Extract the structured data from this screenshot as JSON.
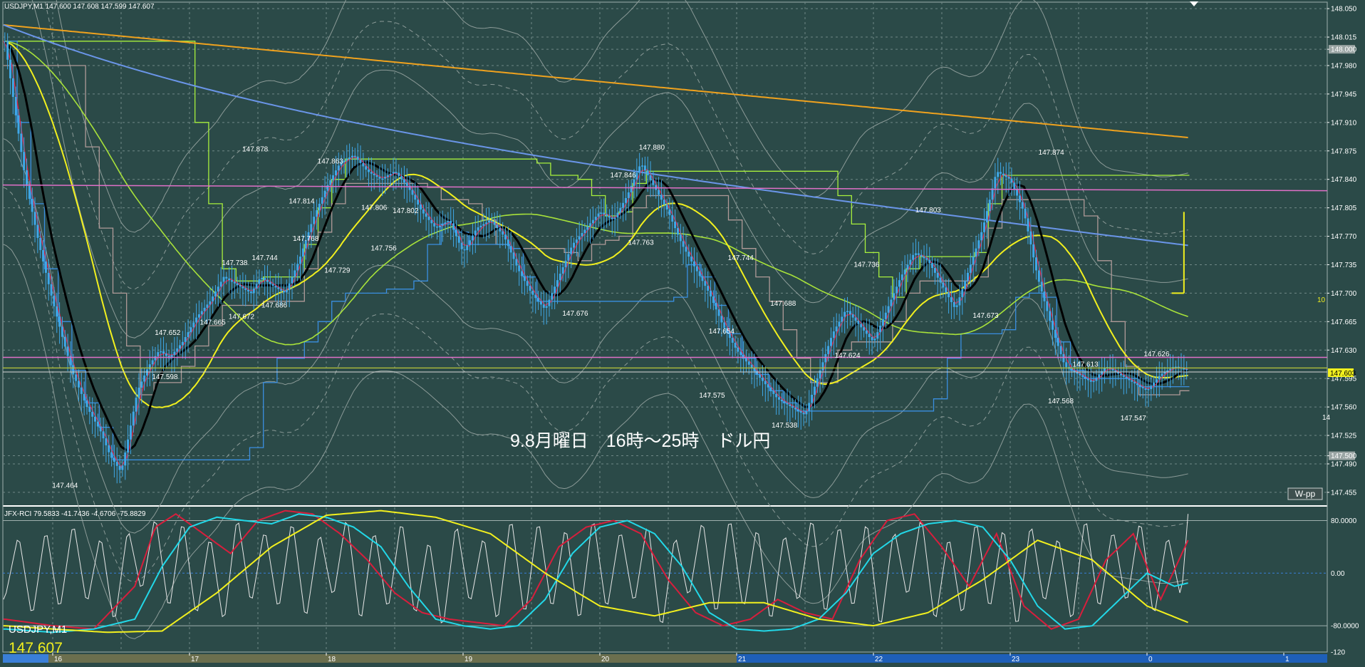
{
  "main_header": "USDJPY,M1  147.600 147.608 147.599 147.607",
  "overlay_title": "9.8月曜日　16時～25時　ドル円",
  "wpp_button": "W-pp",
  "rci_header": "JFX-RCI 79.5833 -41.7436 -4.6706 -75.8829",
  "symbol_label": "USDJPY,M1",
  "price_label": "147.607",
  "current_price_tag": "147.603",
  "tick_label_10": "10",
  "right_edge_label": "14",
  "colors": {
    "background": "#2b4a48",
    "grid": "#6f8886",
    "candle": "#3fa8e8",
    "ma_black": "#000000",
    "ma_red": "#d81e3c",
    "ma_yellow": "#f2f01e",
    "ma_lime": "#a8e23a",
    "ma_orange": "#f0a21e",
    "ma_blue": "#6a95e8",
    "step_green": "#a8f03c",
    "step_gray": "#b09a98",
    "step_blue": "#3a8ee0",
    "bollinger": "#8c9b98",
    "pink_line": "#e070c8",
    "olive_line": "#b8c63a",
    "rci_white": "#e8e8e8",
    "rci_red": "#d81e3c",
    "rci_cyan": "#22d8e8",
    "rci_yellow": "#f2f01e"
  },
  "chart_data": {
    "type": "line",
    "instrument": "USDJPY",
    "timeframe": "M1",
    "main_y_ticks": [
      148.05,
      148.015,
      148.0,
      147.98,
      147.945,
      147.91,
      147.875,
      147.84,
      147.805,
      147.77,
      147.735,
      147.7,
      147.665,
      147.63,
      147.595,
      147.56,
      147.525,
      147.5,
      147.49,
      147.455
    ],
    "boxed_ticks": [
      148.0,
      147.5
    ],
    "ylim": [
      147.44,
      148.058
    ],
    "x_tick_labels": [
      "16",
      "17",
      "18",
      "19",
      "20",
      "21",
      "22",
      "23",
      "0",
      "1"
    ],
    "price_labels": [
      {
        "label": "147.878",
        "x": 1.48,
        "y": 147.878
      },
      {
        "label": "147.863",
        "x": 2.03,
        "y": 147.863
      },
      {
        "label": "147.814",
        "x": 1.82,
        "y": 147.814
      },
      {
        "label": "147.806",
        "x": 2.35,
        "y": 147.806
      },
      {
        "label": "147.802",
        "x": 2.58,
        "y": 147.802
      },
      {
        "label": "147.846",
        "x": 4.17,
        "y": 147.846
      },
      {
        "label": "147.880",
        "x": 4.38,
        "y": 147.88
      },
      {
        "label": "147.874",
        "x": 7.3,
        "y": 147.874
      },
      {
        "label": "147.803",
        "x": 6.4,
        "y": 147.803
      },
      {
        "label": "147.738",
        "x": 1.33,
        "y": 147.738
      },
      {
        "label": "147.744",
        "x": 1.55,
        "y": 147.744
      },
      {
        "label": "147.768",
        "x": 1.85,
        "y": 147.768
      },
      {
        "label": "147.756",
        "x": 2.42,
        "y": 147.756
      },
      {
        "label": "147.729",
        "x": 2.08,
        "y": 147.729
      },
      {
        "label": "147.763",
        "x": 4.3,
        "y": 147.763
      },
      {
        "label": "147.744",
        "x": 5.03,
        "y": 147.744
      },
      {
        "label": "147.736",
        "x": 5.95,
        "y": 147.736
      },
      {
        "label": "147.665",
        "x": 1.17,
        "y": 147.665
      },
      {
        "label": "147.672",
        "x": 1.38,
        "y": 147.672
      },
      {
        "label": "147.686",
        "x": 1.62,
        "y": 147.686
      },
      {
        "label": "147.676",
        "x": 3.82,
        "y": 147.676
      },
      {
        "label": "147.688",
        "x": 5.34,
        "y": 147.688
      },
      {
        "label": "147.673",
        "x": 6.82,
        "y": 147.673
      },
      {
        "label": "147.652",
        "x": 0.84,
        "y": 147.652
      },
      {
        "label": "147.654",
        "x": 4.89,
        "y": 147.654
      },
      {
        "label": "147.613",
        "x": 7.55,
        "y": 147.613
      },
      {
        "label": "147.626",
        "x": 8.07,
        "y": 147.626
      },
      {
        "label": "147.624",
        "x": 5.81,
        "y": 147.624
      },
      {
        "label": "147.598",
        "x": 0.82,
        "y": 147.598
      },
      {
        "label": "147.575",
        "x": 4.82,
        "y": 147.575
      },
      {
        "label": "147.568",
        "x": 7.37,
        "y": 147.568
      },
      {
        "label": "147.538",
        "x": 5.35,
        "y": 147.538
      },
      {
        "label": "147.547",
        "x": 7.9,
        "y": 147.547
      },
      {
        "label": "147.464",
        "x": 0.09,
        "y": 147.464
      }
    ],
    "close_series": {
      "x": [
        -0.35,
        -0.28,
        -0.2,
        -0.1,
        0,
        0.08,
        0.15,
        0.25,
        0.35,
        0.42,
        0.5,
        0.55,
        0.62,
        0.7,
        0.78,
        0.85,
        0.95,
        1.05,
        1.15,
        1.25,
        1.35,
        1.45,
        1.52,
        1.6,
        1.7,
        1.8,
        1.9,
        2.0,
        2.1,
        2.2,
        2.3,
        2.4,
        2.5,
        2.6,
        2.7,
        2.8,
        2.9,
        3.0,
        3.1,
        3.2,
        3.3,
        3.4,
        3.5,
        3.6,
        3.7,
        3.8,
        3.9,
        4.0,
        4.1,
        4.2,
        4.3,
        4.4,
        4.5,
        4.6,
        4.7,
        4.8,
        4.9,
        5.0,
        5.1,
        5.2,
        5.3,
        5.4,
        5.5,
        5.6,
        5.7,
        5.8,
        5.9,
        6.0,
        6.1,
        6.2,
        6.3,
        6.4,
        6.5,
        6.6,
        6.7,
        6.8,
        6.9,
        7.0,
        7.1,
        7.2,
        7.3,
        7.4,
        7.5,
        7.6,
        7.7,
        7.8,
        7.9,
        8.0,
        8.1,
        8.2,
        8.3
      ],
      "y": [
        148.01,
        147.93,
        147.84,
        147.76,
        147.69,
        147.64,
        147.6,
        147.56,
        147.53,
        147.5,
        147.48,
        147.52,
        147.58,
        147.61,
        147.63,
        147.62,
        147.64,
        147.67,
        147.69,
        147.72,
        147.71,
        147.7,
        147.72,
        147.71,
        147.7,
        147.74,
        147.79,
        147.83,
        147.86,
        147.87,
        147.85,
        147.84,
        147.85,
        147.83,
        147.8,
        147.78,
        147.79,
        147.75,
        147.78,
        147.79,
        147.77,
        147.73,
        147.7,
        147.68,
        147.72,
        147.76,
        147.78,
        147.8,
        147.79,
        147.82,
        147.86,
        147.83,
        147.8,
        147.76,
        147.73,
        147.7,
        147.66,
        147.63,
        147.61,
        147.59,
        147.57,
        147.56,
        147.55,
        147.6,
        147.65,
        147.68,
        147.66,
        147.64,
        147.68,
        147.72,
        147.75,
        147.74,
        147.71,
        147.68,
        147.73,
        147.78,
        147.85,
        147.84,
        147.8,
        147.72,
        147.66,
        147.61,
        147.6,
        147.59,
        147.61,
        147.6,
        147.59,
        147.58,
        147.6,
        147.61,
        147.605
      ]
    },
    "rci": {
      "ylim": [
        -120,
        100
      ],
      "y_ticks": [
        80.0,
        0.0,
        -80.0,
        -120
      ],
      "tick_labels": [
        "80.0000",
        "0.00",
        "-80.0000",
        "-120"
      ],
      "series": [
        {
          "key": "white",
          "x": [
            -0.35,
            -0.25,
            -0.15,
            -0.05,
            0.05,
            0.15,
            0.25,
            0.35,
            0.45,
            0.55,
            0.65,
            0.75,
            0.85,
            0.95,
            1.05,
            1.15,
            1.25,
            1.35,
            1.45,
            1.55,
            1.65,
            1.75,
            1.85,
            1.95,
            2.05,
            2.15,
            2.25,
            2.35,
            2.45,
            2.55,
            2.65,
            2.75,
            2.85,
            2.95,
            3.05,
            3.15,
            3.25,
            3.35,
            3.45,
            3.55,
            3.65,
            3.75,
            3.85,
            3.95,
            4.05,
            4.15,
            4.25,
            4.35,
            4.45,
            4.55,
            4.65,
            4.75,
            4.85,
            4.95,
            5.05,
            5.15,
            5.25,
            5.35,
            5.45,
            5.55,
            5.65,
            5.75,
            5.85,
            5.95,
            6.05,
            6.15,
            6.25,
            6.35,
            6.45,
            6.55,
            6.65,
            6.75,
            6.85,
            6.95,
            7.05,
            7.15,
            7.25,
            7.35,
            7.45,
            7.55,
            7.65,
            7.75,
            7.85,
            7.95,
            8.05,
            8.15,
            8.25,
            8.3
          ],
          "y": [
            -40,
            60,
            -70,
            70,
            -60,
            80,
            -50,
            60,
            -80,
            70,
            -30,
            90,
            -60,
            85,
            -70,
            60,
            -80,
            90,
            -50,
            70,
            -60,
            85,
            -75,
            65,
            -40,
            90,
            -80,
            70,
            -60,
            85,
            -70,
            55,
            -90,
            80,
            -50,
            60,
            -80,
            90,
            -70,
            85,
            -60,
            75,
            -80,
            90,
            -60,
            70,
            -50,
            80,
            -90,
            60,
            -40,
            85,
            -70,
            90,
            -60,
            75,
            -80,
            65,
            -50,
            90,
            -70,
            80,
            -60,
            85,
            -90,
            70,
            -40,
            90,
            -80,
            60,
            -70,
            85,
            -60,
            75,
            -90,
            80,
            -50,
            60,
            -80,
            90,
            -60,
            70,
            -50,
            85,
            -70,
            60,
            -40,
            90
          ]
        },
        {
          "key": "red",
          "x": [
            -0.35,
            0,
            0.3,
            0.6,
            0.75,
            0.9,
            1.1,
            1.3,
            1.5,
            1.7,
            1.9,
            2.1,
            2.3,
            2.5,
            2.7,
            2.9,
            3.1,
            3.3,
            3.5,
            3.7,
            3.9,
            4.1,
            4.3,
            4.5,
            4.7,
            4.9,
            5.1,
            5.3,
            5.5,
            5.7,
            5.9,
            6.1,
            6.3,
            6.5,
            6.7,
            6.9,
            7.1,
            7.3,
            7.5,
            7.7,
            7.9,
            8.1,
            8.3
          ],
          "y": [
            -70,
            -80,
            -85,
            -20,
            70,
            90,
            60,
            30,
            80,
            95,
            90,
            60,
            20,
            -30,
            -60,
            -70,
            -75,
            -80,
            -40,
            40,
            70,
            80,
            60,
            -10,
            -60,
            -80,
            -70,
            -40,
            -60,
            -70,
            20,
            80,
            90,
            40,
            -20,
            60,
            -50,
            -85,
            -70,
            20,
            60,
            -40,
            50
          ]
        },
        {
          "key": "cyan",
          "x": [
            -0.35,
            0,
            0.3,
            0.6,
            0.8,
            1.0,
            1.2,
            1.4,
            1.6,
            1.8,
            2.0,
            2.2,
            2.4,
            2.6,
            2.8,
            3.0,
            3.2,
            3.4,
            3.6,
            3.8,
            4.0,
            4.2,
            4.4,
            4.6,
            4.8,
            5.0,
            5.2,
            5.4,
            5.6,
            5.8,
            6.0,
            6.2,
            6.4,
            6.6,
            6.8,
            7.0,
            7.2,
            7.4,
            7.6,
            7.8,
            8.0,
            8.2,
            8.3
          ],
          "y": [
            -85,
            -90,
            -85,
            -70,
            10,
            70,
            85,
            80,
            75,
            90,
            85,
            70,
            40,
            -20,
            -70,
            -80,
            -85,
            -80,
            -40,
            30,
            70,
            80,
            60,
            10,
            -60,
            -85,
            -88,
            -85,
            -70,
            -30,
            30,
            60,
            75,
            80,
            70,
            20,
            -50,
            -85,
            -80,
            -40,
            0,
            -20,
            -15
          ]
        },
        {
          "key": "yellow",
          "x": [
            -0.35,
            0,
            0.4,
            0.8,
            1.2,
            1.6,
            2.0,
            2.4,
            2.8,
            3.2,
            3.6,
            4.0,
            4.4,
            4.8,
            5.2,
            5.6,
            6.0,
            6.4,
            6.8,
            7.2,
            7.6,
            8.0,
            8.3
          ],
          "y": [
            -80,
            -85,
            -90,
            -88,
            -30,
            40,
            88,
            95,
            85,
            60,
            0,
            -50,
            -65,
            -45,
            -45,
            -70,
            -80,
            -60,
            -10,
            50,
            20,
            -50,
            -75
          ]
        }
      ]
    }
  }
}
